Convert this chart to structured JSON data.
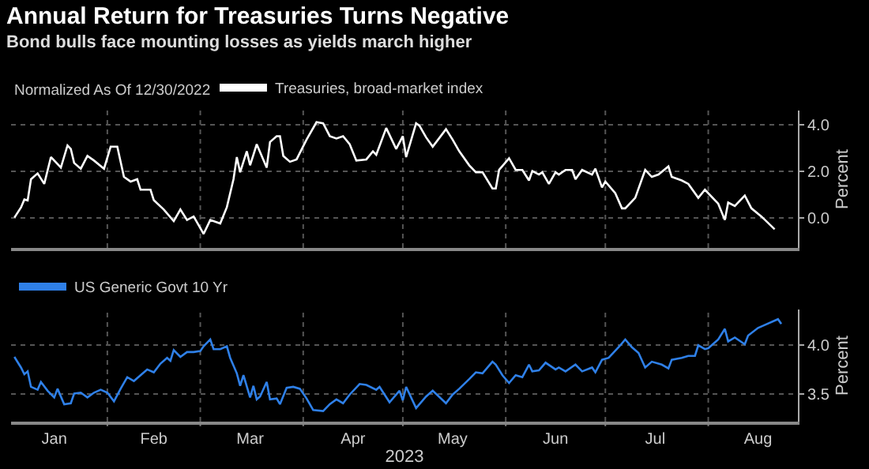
{
  "chart_data": [
    {
      "type": "line",
      "title": "Annual Return for Treasuries Turns Negative",
      "subtitle": "Bond bulls face mounting losses as yields march higher",
      "ylabel": "Percent",
      "annotations": [
        "Normalized As Of 12/30/2022"
      ],
      "xlim": [
        "2023-01-03",
        "2023-08-28"
      ],
      "xticks": [
        {
          "value": "2023-02-01",
          "label": null
        },
        {
          "value": "2023-03-01",
          "label": null
        },
        {
          "value": "2023-04-01",
          "label": null
        },
        {
          "value": "2023-05-01",
          "label": null
        },
        {
          "value": "2023-06-01",
          "label": null
        },
        {
          "value": "2023-07-01",
          "label": null
        },
        {
          "value": "2023-08-01",
          "label": null
        }
      ],
      "ylim": [
        -1.3,
        4.6
      ],
      "yticks": [
        {
          "value": 0,
          "label": "0.0"
        },
        {
          "value": 2,
          "label": "2.0"
        },
        {
          "value": 4,
          "label": "4.0"
        }
      ],
      "tick_labels": "y",
      "grid": true,
      "legend": "top left",
      "series": [
        {
          "name": "Treasuries, broad-market index",
          "color": "#ffffff",
          "x": [
            "2023-01-04",
            "2023-01-06",
            "2023-01-07",
            "2023-01-08",
            "2023-01-09",
            "2023-01-11",
            "2023-01-13",
            "2023-01-15",
            "2023-01-18",
            "2023-01-20",
            "2023-01-21",
            "2023-01-22",
            "2023-01-24",
            "2023-01-26",
            "2023-01-28",
            "2023-01-31",
            "2023-02-02",
            "2023-02-04",
            "2023-02-06",
            "2023-02-08",
            "2023-02-10",
            "2023-02-11",
            "2023-02-14",
            "2023-02-15",
            "2023-02-18",
            "2023-02-21",
            "2023-02-23",
            "2023-02-25",
            "2023-02-27",
            "2023-03-02",
            "2023-03-04",
            "2023-03-07",
            "2023-03-09",
            "2023-03-11",
            "2023-03-12",
            "2023-03-13",
            "2023-03-15",
            "2023-03-16",
            "2023-03-18",
            "2023-03-21",
            "2023-03-22",
            "2023-03-24",
            "2023-03-25",
            "2023-03-26",
            "2023-03-28",
            "2023-03-30",
            "2023-04-02",
            "2023-04-05",
            "2023-04-07",
            "2023-04-09",
            "2023-04-11",
            "2023-04-13",
            "2023-04-15",
            "2023-04-17",
            "2023-04-20",
            "2023-04-22",
            "2023-04-23",
            "2023-04-26",
            "2023-04-29",
            "2023-05-01",
            "2023-05-02",
            "2023-05-05",
            "2023-05-06",
            "2023-05-08",
            "2023-05-10",
            "2023-05-14",
            "2023-05-16",
            "2023-05-18",
            "2023-05-21",
            "2023-05-23",
            "2023-05-25",
            "2023-05-28",
            "2023-05-29",
            "2023-05-30",
            "2023-06-02",
            "2023-06-04",
            "2023-06-06",
            "2023-06-08",
            "2023-06-09",
            "2023-06-11",
            "2023-06-12",
            "2023-06-14",
            "2023-06-16",
            "2023-06-17",
            "2023-06-19",
            "2023-06-21",
            "2023-06-22",
            "2023-06-24",
            "2023-06-27",
            "2023-06-28",
            "2023-06-30",
            "2023-07-01",
            "2023-07-04",
            "2023-07-06",
            "2023-07-07",
            "2023-07-10",
            "2023-07-13",
            "2023-07-15",
            "2023-07-17",
            "2023-07-20",
            "2023-07-21",
            "2023-07-24",
            "2023-07-26",
            "2023-07-29",
            "2023-07-31",
            "2023-08-04",
            "2023-08-06",
            "2023-08-07",
            "2023-08-09",
            "2023-08-12",
            "2023-08-14",
            "2023-08-17",
            "2023-08-21"
          ],
          "values": [
            0,
            0.44,
            0.78,
            0.74,
            1.65,
            1.9,
            1.45,
            2.6,
            2.15,
            3.1,
            2.95,
            2.35,
            2.1,
            2.65,
            2.45,
            2.1,
            3.05,
            3.05,
            1.75,
            1.55,
            1.65,
            1.2,
            1.2,
            0.75,
            0.35,
            -0.15,
            0.35,
            -0.1,
            0.05,
            -0.7,
            -0.1,
            -0.25,
            0.45,
            1.65,
            2.6,
            1.95,
            2.85,
            2.25,
            3.15,
            2.15,
            3.25,
            3.5,
            3.5,
            2.65,
            2.4,
            2.5,
            3.35,
            4.1,
            4.05,
            3.5,
            3.4,
            3.5,
            3.15,
            2.45,
            2.5,
            2.85,
            2.7,
            3.85,
            2.95,
            3.5,
            2.6,
            4.05,
            3.95,
            3.45,
            3.05,
            3.8,
            3.35,
            2.85,
            2.25,
            1.95,
            1.95,
            1.25,
            1.25,
            2.05,
            2.55,
            2.05,
            2.05,
            1.6,
            2.0,
            1.85,
            1.95,
            1.45,
            1.95,
            1.85,
            2.05,
            2.05,
            1.65,
            2.05,
            1.85,
            2.1,
            1.3,
            1.55,
            1.05,
            0.4,
            0.4,
            0.85,
            2.05,
            1.75,
            1.85,
            2.2,
            1.75,
            1.6,
            1.45,
            0.85,
            1.2,
            0.6,
            -0.1,
            0.65,
            0.5,
            0.95,
            0.4,
            0.05,
            -0.5
          ]
        }
      ]
    },
    {
      "type": "line",
      "ylabel": "Percent",
      "xlabel": "2023",
      "xlim": [
        "2023-01-03",
        "2023-08-28"
      ],
      "xticks": [
        {
          "value": "2023-01-16",
          "label": "Jan"
        },
        {
          "value": "2023-02-01",
          "label": null
        },
        {
          "value": "2023-02-15",
          "label": "Feb"
        },
        {
          "value": "2023-03-01",
          "label": null
        },
        {
          "value": "2023-03-16",
          "label": "Mar"
        },
        {
          "value": "2023-04-01",
          "label": null
        },
        {
          "value": "2023-04-16",
          "label": "Apr"
        },
        {
          "value": "2023-05-01",
          "label": null
        },
        {
          "value": "2023-05-16",
          "label": "May"
        },
        {
          "value": "2023-06-01",
          "label": null
        },
        {
          "value": "2023-06-16",
          "label": "Jun"
        },
        {
          "value": "2023-07-01",
          "label": null
        },
        {
          "value": "2023-07-16",
          "label": "Jul"
        },
        {
          "value": "2023-08-01",
          "label": null
        },
        {
          "value": "2023-08-16",
          "label": "Aug"
        }
      ],
      "ylim": [
        3.21,
        4.37
      ],
      "yticks": [
        {
          "value": 3.5,
          "label": "3.5"
        },
        {
          "value": 4,
          "label": "4.0"
        }
      ],
      "grid": true,
      "legend": "top left",
      "series": [
        {
          "name": "US Generic Govt 10 Yr",
          "color": "#2f80e8",
          "x": [
            "2023-01-04",
            "2023-01-06",
            "2023-01-07",
            "2023-01-08",
            "2023-01-09",
            "2023-01-11",
            "2023-01-12",
            "2023-01-14",
            "2023-01-16",
            "2023-01-17",
            "2023-01-19",
            "2023-01-21",
            "2023-01-22",
            "2023-01-24",
            "2023-01-26",
            "2023-01-28",
            "2023-01-30",
            "2023-02-01",
            "2023-02-03",
            "2023-02-05",
            "2023-02-07",
            "2023-02-09",
            "2023-02-11",
            "2023-02-13",
            "2023-02-15",
            "2023-02-17",
            "2023-02-19",
            "2023-02-20",
            "2023-02-21",
            "2023-02-23",
            "2023-02-25",
            "2023-02-27",
            "2023-03-01",
            "2023-03-02",
            "2023-03-04",
            "2023-03-05",
            "2023-03-07",
            "2023-03-09",
            "2023-03-10",
            "2023-03-12",
            "2023-03-13",
            "2023-03-14",
            "2023-03-16",
            "2023-03-17",
            "2023-03-18",
            "2023-03-19",
            "2023-03-21",
            "2023-03-22",
            "2023-03-24",
            "2023-03-25",
            "2023-03-27",
            "2023-03-29",
            "2023-03-31",
            "2023-04-02",
            "2023-04-04",
            "2023-04-07",
            "2023-04-09",
            "2023-04-11",
            "2023-04-13",
            "2023-04-15",
            "2023-04-18",
            "2023-04-20",
            "2023-04-23",
            "2023-04-24",
            "2023-04-27",
            "2023-04-30",
            "2023-05-01",
            "2023-05-02",
            "2023-05-05",
            "2023-05-08",
            "2023-05-10",
            "2023-05-14",
            "2023-05-16",
            "2023-05-18",
            "2023-05-21",
            "2023-05-23",
            "2023-05-25",
            "2023-05-28",
            "2023-05-29",
            "2023-05-31",
            "2023-06-02",
            "2023-06-04",
            "2023-06-06",
            "2023-06-08",
            "2023-06-09",
            "2023-06-11",
            "2023-06-13",
            "2023-06-16",
            "2023-06-17",
            "2023-06-19",
            "2023-06-22",
            "2023-06-24",
            "2023-06-27",
            "2023-06-28",
            "2023-06-30",
            "2023-07-02",
            "2023-07-05",
            "2023-07-07",
            "2023-07-09",
            "2023-07-11",
            "2023-07-13",
            "2023-07-15",
            "2023-07-18",
            "2023-07-20",
            "2023-07-21",
            "2023-07-24",
            "2023-07-26",
            "2023-07-28",
            "2023-07-29",
            "2023-07-31",
            "2023-08-01",
            "2023-08-04",
            "2023-08-06",
            "2023-08-07",
            "2023-08-09",
            "2023-08-12",
            "2023-08-13",
            "2023-08-16",
            "2023-08-18",
            "2023-08-22",
            "2023-08-23"
          ],
          "values": [
            3.88,
            3.77,
            3.7,
            3.73,
            3.57,
            3.54,
            3.62,
            3.53,
            3.46,
            3.55,
            3.39,
            3.4,
            3.5,
            3.51,
            3.46,
            3.51,
            3.54,
            3.51,
            3.42,
            3.55,
            3.67,
            3.63,
            3.69,
            3.75,
            3.72,
            3.81,
            3.87,
            3.84,
            3.95,
            3.88,
            3.93,
            3.93,
            3.94,
            3.99,
            4.06,
            3.96,
            3.96,
            3.99,
            3.87,
            3.71,
            3.58,
            3.69,
            3.46,
            3.58,
            3.44,
            3.47,
            3.62,
            3.44,
            3.45,
            3.39,
            3.56,
            3.57,
            3.55,
            3.45,
            3.33,
            3.32,
            3.39,
            3.44,
            3.4,
            3.49,
            3.6,
            3.59,
            3.54,
            3.57,
            3.41,
            3.53,
            3.43,
            3.57,
            3.35,
            3.47,
            3.53,
            3.4,
            3.49,
            3.55,
            3.65,
            3.72,
            3.71,
            3.83,
            3.8,
            3.69,
            3.61,
            3.69,
            3.67,
            3.8,
            3.73,
            3.74,
            3.82,
            3.75,
            3.77,
            3.73,
            3.8,
            3.73,
            3.77,
            3.72,
            3.85,
            3.87,
            3.98,
            4.06,
            3.98,
            3.92,
            3.77,
            3.83,
            3.8,
            3.76,
            3.85,
            3.87,
            3.89,
            3.89,
            4.0,
            3.96,
            3.97,
            4.06,
            4.17,
            4.04,
            4.08,
            4.01,
            4.1,
            4.18,
            4.21,
            4.27,
            4.22
          ]
        }
      ]
    }
  ]
}
